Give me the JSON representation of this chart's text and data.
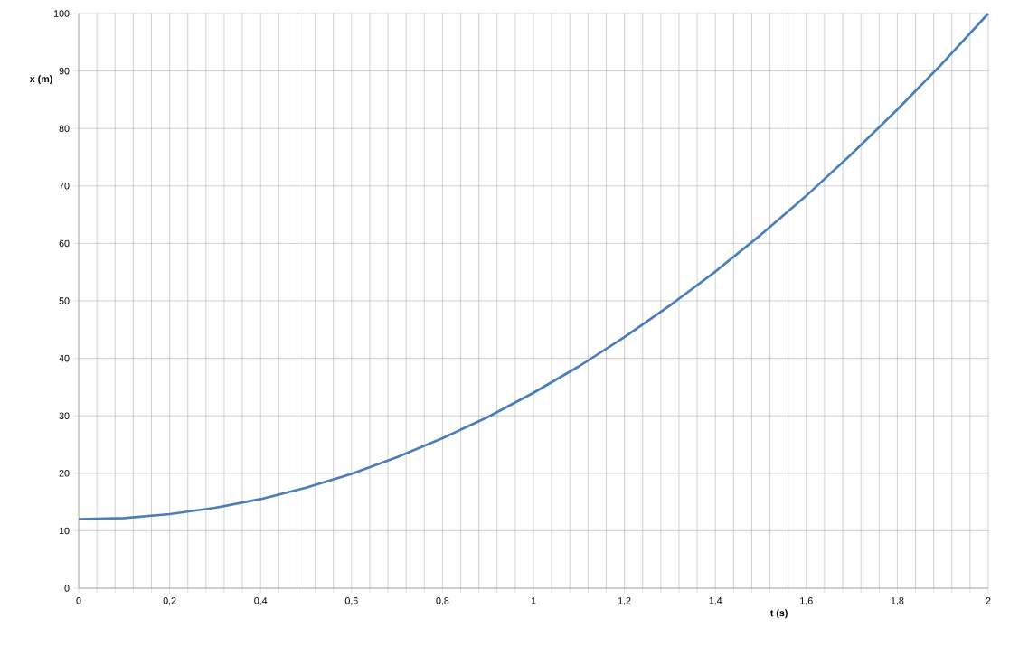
{
  "chart_data": {
    "type": "line",
    "xlabel": "t (s)",
    "ylabel": "x (m)",
    "x": [
      0,
      0.1,
      0.2,
      0.3,
      0.4,
      0.5,
      0.6,
      0.7,
      0.8,
      0.9,
      1,
      1.1,
      1.2,
      1.3,
      1.4,
      1.5,
      1.6,
      1.7,
      1.8,
      1.9,
      2
    ],
    "series": [
      {
        "color": "#4a7ebb",
        "values": [
          12,
          12.2,
          12.9,
          14,
          15.5,
          17.5,
          19.9,
          22.8,
          26.1,
          29.8,
          34,
          38.6,
          43.7,
          49.2,
          55.1,
          61.5,
          68.3,
          75.6,
          83.3,
          91.4,
          100
        ]
      }
    ],
    "xlim": [
      0,
      2
    ],
    "ylim": [
      0,
      100
    ],
    "xticks": [
      0,
      {
        "value": 0.2,
        "label": "0,2"
      },
      {
        "value": 0.4,
        "label": "0,4"
      },
      {
        "value": 0.6,
        "label": "0,6"
      },
      {
        "value": 0.8,
        "label": "0,8"
      },
      1,
      {
        "value": 1.2,
        "label": "1,2"
      },
      {
        "value": 1.4,
        "label": "1,4"
      },
      {
        "value": 1.6,
        "label": "1,6"
      },
      {
        "value": 1.8,
        "label": "1,8"
      },
      2
    ],
    "yticks": [
      0,
      10,
      20,
      30,
      40,
      50,
      60,
      70,
      80,
      90,
      100
    ],
    "grid": true,
    "marker": "none",
    "line_style": "solid"
  }
}
